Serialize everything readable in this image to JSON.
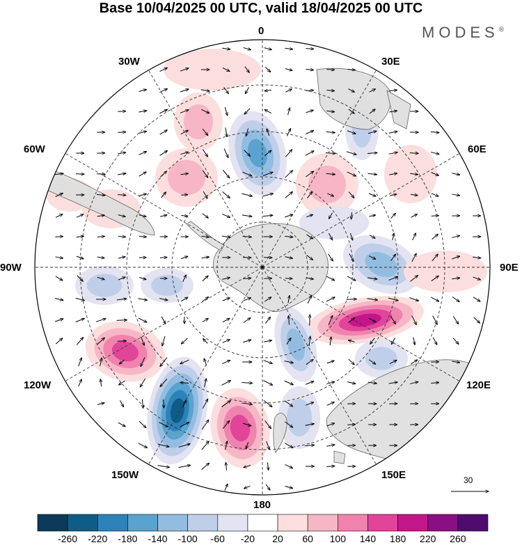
{
  "title": "Base 10/04/2025 00 UTC, valid 18/04/2025 00 UTC",
  "brand": "MODES",
  "brand_mark": "®",
  "longitude_labels": [
    "0",
    "30E",
    "60E",
    "90E",
    "120E",
    "150E",
    "180",
    "150W",
    "120W",
    "90W",
    "60W",
    "30W"
  ],
  "reference_vector_label": "30",
  "colorbar": {
    "tick_labels": [
      "-260",
      "-220",
      "-180",
      "-140",
      "-100",
      "-60",
      "-20",
      "20",
      "60",
      "100",
      "140",
      "180",
      "220",
      "260"
    ],
    "colors": [
      "#0b3a5a",
      "#0f5c88",
      "#2c82b9",
      "#5aa3cf",
      "#93bde0",
      "#bfcfea",
      "#e3e3f1",
      "#ffffff",
      "#fbdedd",
      "#f7b6c6",
      "#f083ae",
      "#e0459a",
      "#c2178a",
      "#8a0f82",
      "#4f0c6e"
    ]
  },
  "colors": {
    "land": "#dedede",
    "coast": "#555555",
    "grid": "#333333"
  }
}
